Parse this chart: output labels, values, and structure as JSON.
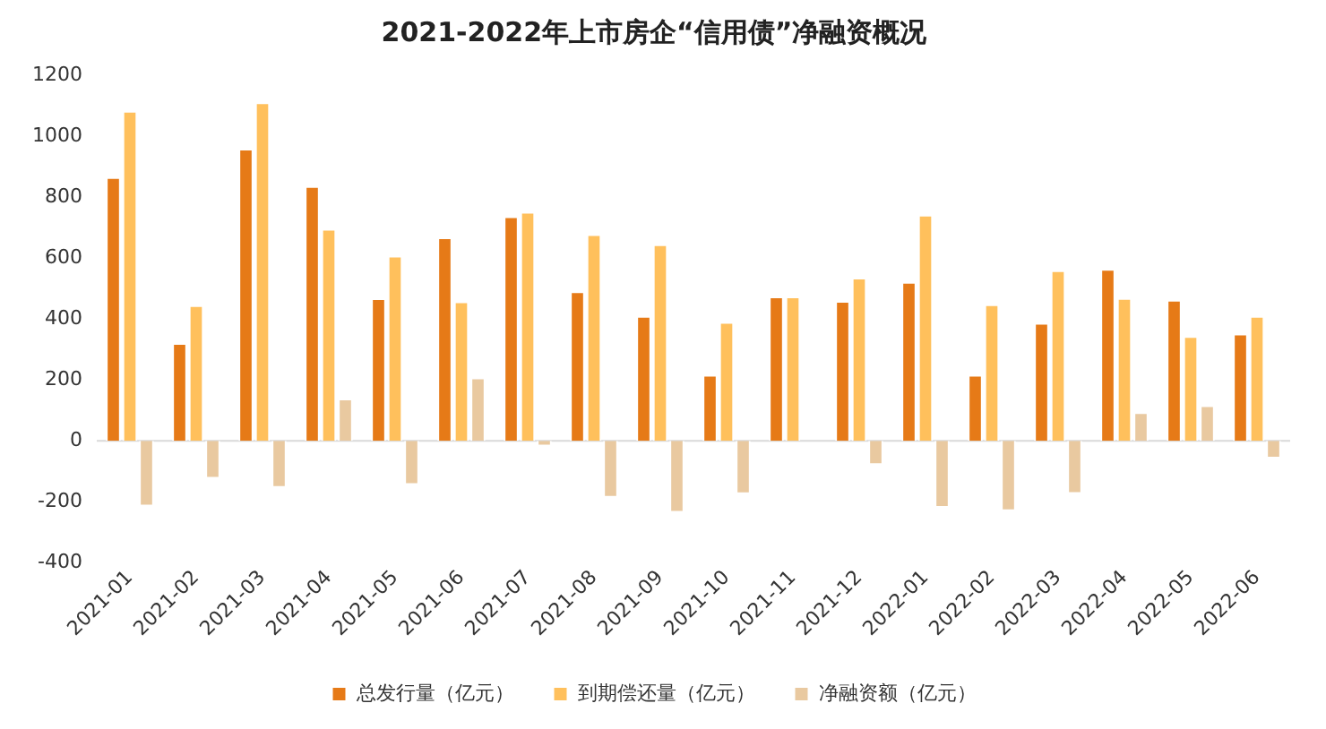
{
  "chart_data": {
    "type": "bar",
    "title": "2021-2022年上市房企“信用债”净融资概况",
    "categories": [
      "2021-01",
      "2021-02",
      "2021-03",
      "2021-04",
      "2021-05",
      "2021-06",
      "2021-07",
      "2021-08",
      "2021-09",
      "2021-10",
      "2021-11",
      "2021-12",
      "2022-01",
      "2022-02",
      "2022-03",
      "2022-04",
      "2022-05",
      "2022-06"
    ],
    "series": [
      {
        "name": "总发行量（亿元）",
        "color": "#e67a17",
        "values": [
          866,
          321,
          959,
          836,
          468,
          668,
          737,
          491,
          410,
          217,
          474,
          459,
          522,
          217,
          387,
          564,
          463,
          352
        ]
      },
      {
        "name": "到期偿还量（亿元）",
        "color": "#ffc05c",
        "values": [
          1083,
          445,
          1111,
          696,
          608,
          458,
          752,
          678,
          645,
          390,
          474,
          536,
          742,
          448,
          560,
          469,
          344,
          410
        ]
      },
      {
        "name": "净融资额（亿元）",
        "color": "#e9c9a0",
        "values": [
          -215,
          -124,
          -154,
          139,
          -145,
          208,
          -18,
          -187,
          -236,
          -175,
          0,
          -79,
          -220,
          -231,
          -174,
          94,
          117,
          -58
        ]
      }
    ],
    "ylim": [
      -400,
      1200
    ],
    "yticks": [
      -400,
      -200,
      0,
      200,
      400,
      600,
      800,
      1000,
      1200
    ],
    "ref_lines": [
      {
        "axis": "y",
        "value": 0,
        "color": "#d9d9d9"
      }
    ],
    "grid": false,
    "legend": "bottom"
  }
}
